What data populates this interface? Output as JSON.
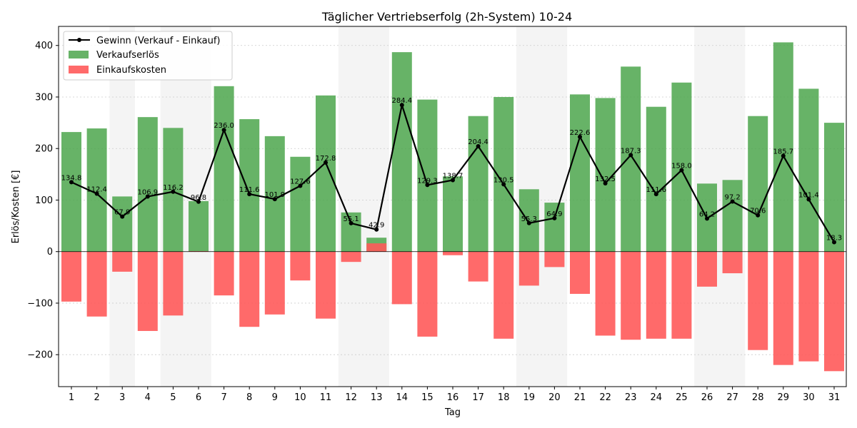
{
  "chart_data": {
    "type": "bar",
    "title": "Täglicher Vertriebserfolg (2h-System) 10-24",
    "xlabel": "Tag",
    "ylabel": "Erlös/Kosten [€]",
    "ylim": [
      -262,
      437
    ],
    "yticks": [
      -200,
      -100,
      0,
      100,
      200,
      300,
      400
    ],
    "grid": true,
    "legend_position": "top-left",
    "categories": [
      "1",
      "2",
      "3",
      "4",
      "5",
      "6",
      "7",
      "8",
      "9",
      "10",
      "11",
      "12",
      "13",
      "14",
      "15",
      "16",
      "17",
      "18",
      "19",
      "20",
      "21",
      "22",
      "23",
      "24",
      "25",
      "26",
      "27",
      "28",
      "29",
      "30",
      "31"
    ],
    "shaded_days": [
      "3",
      "5",
      "6",
      "12",
      "13",
      "19",
      "20",
      "26",
      "27"
    ],
    "series": [
      {
        "name": "Verkaufserlös",
        "type": "bar",
        "color": "#4ca64c",
        "values": [
          232,
          239,
          107,
          261,
          240,
          98,
          321,
          257,
          224,
          184,
          303,
          76,
          27,
          387,
          295,
          146,
          263,
          300,
          121,
          95,
          305,
          298,
          359,
          281,
          328,
          132,
          139,
          263,
          406,
          316,
          250
        ]
      },
      {
        "name": "Einkaufskosten",
        "type": "bar",
        "color": "#ff5a5a",
        "values": [
          -97,
          -126,
          -39,
          -154,
          -124,
          1,
          -85,
          -146,
          -122,
          -56,
          -130,
          -20,
          16,
          -102,
          -165,
          -7,
          -58,
          -169,
          -66,
          -30,
          -82,
          -163,
          -171,
          -169,
          -169,
          -68,
          -42,
          -191,
          -220,
          -213,
          -232
        ]
      },
      {
        "name": "Gewinn (Verkauf - Einkauf)",
        "type": "line",
        "color": "#000000",
        "values": [
          134.8,
          112.4,
          67.9,
          106.9,
          116.2,
          96.8,
          236.0,
          111.6,
          101.9,
          127.6,
          172.8,
          55.1,
          42.9,
          284.4,
          129.3,
          138.7,
          204.4,
          130.5,
          55.3,
          64.9,
          222.6,
          132.5,
          187.3,
          111.6,
          158.0,
          64.2,
          97.2,
          70.6,
          185.7,
          101.4,
          18.3
        ],
        "labels": [
          "134.8",
          "112.4",
          "67.9",
          "106.9",
          "116.2",
          "96.8",
          "236.0",
          "111.6",
          "101.9",
          "127.6",
          "172.8",
          "55.1",
          "42.9",
          "284.4",
          "129.3",
          "138.7",
          "204.4",
          "130.5",
          "55.3",
          "64.9",
          "222.6",
          "132.5",
          "187.3",
          "111.6",
          "158.0",
          "64.2",
          "97.2",
          "70.6",
          "185.7",
          "101.4",
          "18.3"
        ]
      }
    ],
    "legend": [
      "Gewinn (Verkauf - Einkauf)",
      "Verkaufserlös",
      "Einkaufskosten"
    ]
  }
}
